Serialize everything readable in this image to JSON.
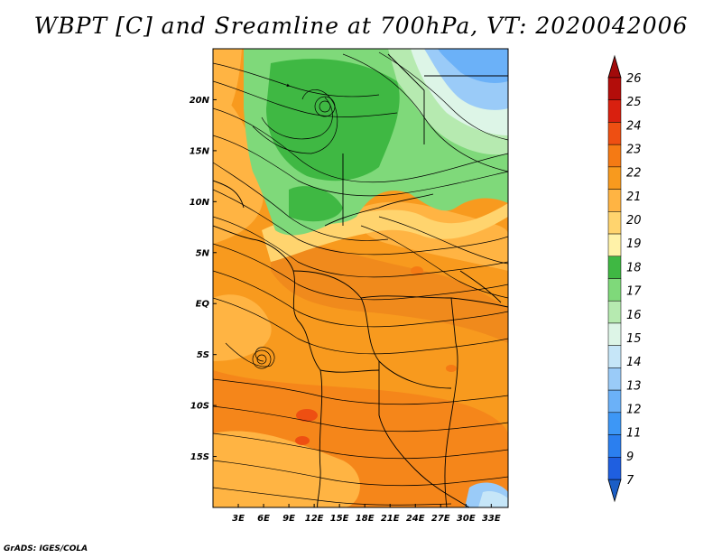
{
  "title": "WBPT [C] and Sreamline at 700hPa, VT: 2020042006",
  "credit": "GrADS: IGES/COLA",
  "map": {
    "lon_labels": [
      "3E",
      "6E",
      "9E",
      "12E",
      "15E",
      "18E",
      "21E",
      "24E",
      "27E",
      "30E",
      "33E"
    ],
    "lat_labels": [
      "20N",
      "15N",
      "10N",
      "5N",
      "EQ",
      "5S",
      "10S",
      "15S"
    ],
    "lon_range": [
      0,
      35
    ],
    "lat_range": [
      -20,
      25
    ]
  },
  "colorbar": {
    "labels": [
      "7",
      "9",
      "11",
      "12",
      "13",
      "14",
      "15",
      "16",
      "17",
      "18",
      "19",
      "20",
      "21",
      "22",
      "23",
      "24",
      "25",
      "26"
    ],
    "colors": [
      "#1f5fe0",
      "#2b7fef",
      "#3d97f6",
      "#6bb1f8",
      "#9acbf8",
      "#c6e6f8",
      "#ddf5e7",
      "#b6eab0",
      "#7fd97a",
      "#3fb843",
      "#fff2a8",
      "#ffd46e",
      "#ffb443",
      "#f89a1e",
      "#f57a14",
      "#ee4f12",
      "#d9200f",
      "#b30d0a"
    ],
    "low_color": "#1b5ec6",
    "high_color": "#a10a0a"
  }
}
